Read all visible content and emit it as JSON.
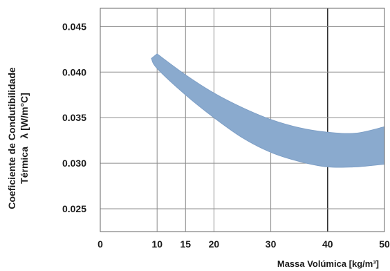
{
  "chart_data": {
    "type": "area",
    "title": "",
    "xlabel": "Massa Volúmica [kg/m³]",
    "ylabel_line1": "Coeficiente de Condutibilidade",
    "ylabel_line2": "Térmica   λ [W/m°C]",
    "x_ticks": [
      {
        "value": 0,
        "label": "0"
      },
      {
        "value": 10,
        "label": "10"
      },
      {
        "value": 15,
        "label": "15"
      },
      {
        "value": 20,
        "label": "20"
      },
      {
        "value": 30,
        "label": "30"
      },
      {
        "value": 40,
        "label": "40"
      },
      {
        "value": 50,
        "label": "50"
      }
    ],
    "y_ticks": [
      {
        "value": 0.025,
        "label": "0.025"
      },
      {
        "value": 0.03,
        "label": "0.030"
      },
      {
        "value": 0.035,
        "label": "0.035"
      },
      {
        "value": 0.04,
        "label": "0.040"
      },
      {
        "value": 0.045,
        "label": "0.045"
      }
    ],
    "xlim": [
      0,
      50
    ],
    "ylim": [
      0.0225,
      0.047
    ],
    "grid": true,
    "band_color": "#8aaace",
    "band": {
      "upper": [
        [
          10,
          0.042
        ],
        [
          15,
          0.0397
        ],
        [
          20,
          0.0377
        ],
        [
          25,
          0.0361
        ],
        [
          30,
          0.0348
        ],
        [
          35,
          0.0339
        ],
        [
          40,
          0.0334
        ],
        [
          45,
          0.0333
        ],
        [
          50,
          0.034
        ]
      ],
      "lower": [
        [
          9,
          0.0415
        ],
        [
          10,
          0.0404
        ],
        [
          15,
          0.0375
        ],
        [
          20,
          0.035
        ],
        [
          25,
          0.0328
        ],
        [
          30,
          0.0312
        ],
        [
          35,
          0.0302
        ],
        [
          40,
          0.0296
        ],
        [
          45,
          0.0296
        ],
        [
          50,
          0.0299
        ]
      ]
    }
  }
}
